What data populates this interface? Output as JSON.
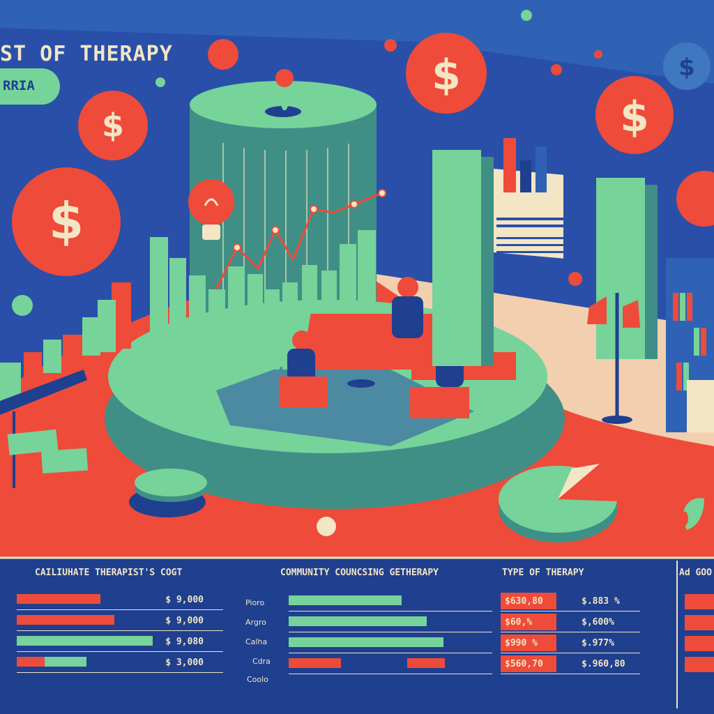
{
  "header": {
    "title": "ST OF THERAPY",
    "pill_label": "RRIA"
  },
  "colors": {
    "navy": "#1f3f8f",
    "red": "#ee4b3a",
    "mint": "#76d39a",
    "teal": "#3f8f86",
    "cream": "#f2e6c4"
  },
  "panels": {
    "panel1": {
      "title": "CAILIUHATE THERAPIST'S COGT",
      "rows": [
        {
          "value": "$ 9,000",
          "fill": 0.4
        },
        {
          "value": "$ 9,000",
          "fill": 0.48
        },
        {
          "value": "$ 9,080",
          "fill": 0.65
        },
        {
          "value": "$ 3,000",
          "fill": 0.3
        }
      ]
    },
    "panel2": {
      "title": "COMMUNITY COUNCSING GETHERAPY",
      "labels": [
        "Pioro",
        "Argro",
        "Calha",
        "Cdra",
        "Coolo"
      ],
      "rows": [
        {
          "fill": 0.55
        },
        {
          "fill": 0.66
        },
        {
          "fill": 0.74
        },
        {
          "fill": 0.25
        }
      ]
    },
    "panel3": {
      "title": "TYPE OF THERAPY",
      "rows": [
        {
          "value_a": "$630,80",
          "value_b": "$.883 %"
        },
        {
          "value_a": "$60,%",
          "value_b": "$,600%"
        },
        {
          "value_a": "$990 %",
          "value_b": "$.977%"
        },
        {
          "value_a": "$560,70",
          "value_b": "$.960,80"
        }
      ]
    },
    "panel4": {
      "title": "Ad GOO"
    }
  },
  "icons": [
    "dollar-coin-icon",
    "lightbulb-icon",
    "map-pin-icon",
    "leaf-icon",
    "floor-lamp-icon",
    "pie-chart-icon"
  ]
}
